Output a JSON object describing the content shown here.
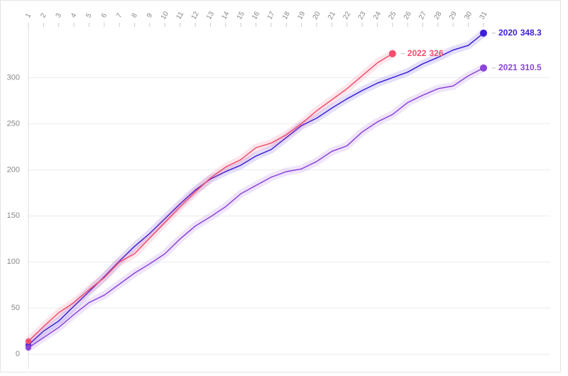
{
  "chart_data": {
    "type": "line",
    "x": [
      1,
      2,
      3,
      4,
      5,
      6,
      7,
      8,
      9,
      10,
      11,
      12,
      13,
      14,
      15,
      16,
      17,
      18,
      19,
      20,
      21,
      22,
      23,
      24,
      25,
      26,
      27,
      28,
      29,
      30,
      31
    ],
    "xlim": [
      1,
      35.4
    ],
    "xticks": [
      1,
      2,
      3,
      4,
      5,
      6,
      7,
      8,
      9,
      10,
      11,
      12,
      13,
      14,
      15,
      16,
      17,
      18,
      19,
      20,
      21,
      22,
      23,
      24,
      25,
      26,
      27,
      28,
      29,
      30,
      31
    ],
    "ylim": [
      -16,
      355
    ],
    "yticks": [
      0,
      50,
      100,
      150,
      200,
      250,
      300
    ],
    "grid": true,
    "series": [
      {
        "name": "2020",
        "color": "#3d1fd9",
        "values": [
          10,
          25,
          36,
          52,
          68,
          84,
          101,
          117,
          131,
          147,
          163,
          178,
          190,
          198,
          205,
          215,
          222,
          235,
          248,
          256,
          267,
          277,
          286,
          294,
          300,
          306,
          315,
          322,
          330,
          335,
          348.3
        ]
      },
      {
        "name": "2021",
        "color": "#8b44d9",
        "values": [
          7,
          18,
          29,
          43,
          56,
          64,
          76,
          88,
          98,
          109,
          125,
          139,
          149,
          160,
          174,
          183,
          192,
          198,
          201,
          209,
          220,
          226,
          241,
          252,
          260,
          273,
          281,
          288,
          291,
          302,
          310.5
        ]
      },
      {
        "name": "2022",
        "color": "#f24e6e",
        "values": [
          14,
          30,
          45,
          56,
          70,
          83,
          100,
          109,
          126,
          143,
          160,
          176,
          191,
          203,
          211,
          224,
          229,
          238,
          250,
          264,
          276,
          288,
          302,
          316,
          326,
          null,
          null,
          null,
          null,
          null,
          null
        ]
      }
    ]
  }
}
